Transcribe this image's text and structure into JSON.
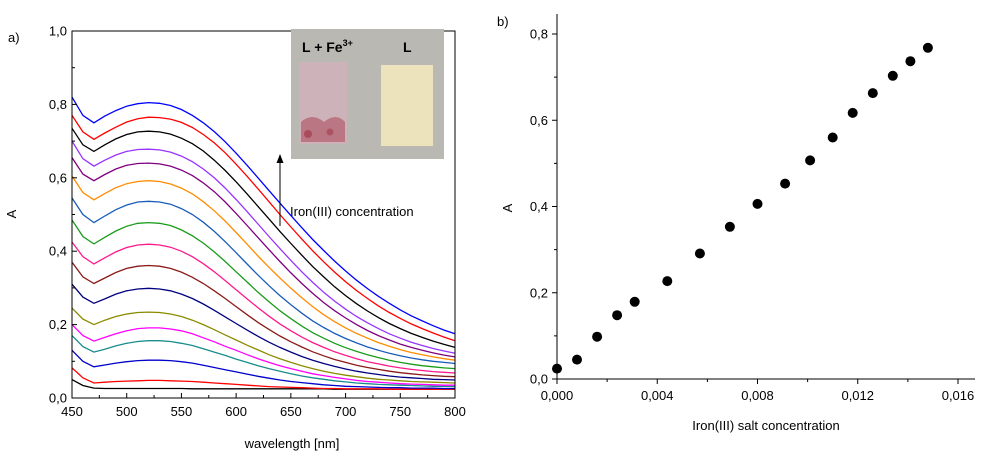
{
  "panels": {
    "a": {
      "letter": "a)",
      "xlabel": "wavelength [nm]",
      "ylabel": "A",
      "xlim": [
        450,
        800
      ],
      "ylim": [
        0.0,
        1.0
      ],
      "xticks": [
        "450",
        "500",
        "550",
        "600",
        "650",
        "700",
        "750",
        "800"
      ],
      "yticks": [
        "0,0",
        "0,2",
        "0,4",
        "0,6",
        "0,8",
        "1,0"
      ],
      "arrow_label": "Iron(III) concentration",
      "inset": {
        "left_label": "L + Fe",
        "left_sup": "3+",
        "right_label": "L",
        "left_swatch_color": "#cdb2b9",
        "right_swatch_color": "#ece3bd",
        "background_color": "#b9b8b3"
      }
    },
    "b": {
      "letter": "b)",
      "xlabel": "Iron(III) salt concentration",
      "ylabel": "A",
      "xlim": [
        0.0,
        0.016
      ],
      "ylim": [
        0.0,
        0.85
      ],
      "xticks": [
        "0,000",
        "0,004",
        "0,008",
        "0,012",
        "0,016"
      ],
      "yticks": [
        "0,0",
        "0,2",
        "0,4",
        "0,6",
        "0,8"
      ]
    }
  },
  "chart_data": [
    {
      "type": "line",
      "xlabel": "wavelength [nm]",
      "ylabel": "A",
      "xlim": [
        450,
        800
      ],
      "ylim": [
        0.0,
        1.0
      ],
      "grid": false,
      "annotation": "Iron(III) concentration",
      "x": [
        450,
        460,
        470,
        480,
        490,
        500,
        510,
        520,
        530,
        540,
        550,
        560,
        570,
        580,
        590,
        600,
        610,
        620,
        630,
        640,
        650,
        660,
        670,
        680,
        690,
        700,
        710,
        720,
        730,
        740,
        750,
        760,
        770,
        780,
        790,
        800
      ],
      "series": [
        {
          "color": "#000000",
          "values": [
            0.05,
            0.034,
            0.027,
            0.026,
            0.026,
            0.026,
            0.026,
            0.026,
            0.026,
            0.026,
            0.026,
            0.025,
            0.025,
            0.025,
            0.025,
            0.025,
            0.025,
            0.025,
            0.025,
            0.025,
            0.025,
            0.025,
            0.025,
            0.025,
            0.024,
            0.024,
            0.024,
            0.024,
            0.024,
            0.024,
            0.024,
            0.024,
            0.024,
            0.024,
            0.024,
            0.024
          ]
        },
        {
          "color": "#ff0000",
          "values": [
            0.082,
            0.055,
            0.041,
            0.043,
            0.045,
            0.046,
            0.047,
            0.048,
            0.048,
            0.047,
            0.046,
            0.045,
            0.043,
            0.041,
            0.039,
            0.037,
            0.035,
            0.033,
            0.031,
            0.03,
            0.029,
            0.028,
            0.027,
            0.026,
            0.026,
            0.025,
            0.025,
            0.025,
            0.025,
            0.024,
            0.024,
            0.024,
            0.024,
            0.024,
            0.024,
            0.024
          ]
        },
        {
          "color": "#0000cc",
          "values": [
            0.13,
            0.1,
            0.085,
            0.09,
            0.095,
            0.099,
            0.102,
            0.103,
            0.103,
            0.102,
            0.099,
            0.095,
            0.089,
            0.083,
            0.077,
            0.071,
            0.065,
            0.059,
            0.054,
            0.049,
            0.045,
            0.042,
            0.039,
            0.036,
            0.034,
            0.032,
            0.031,
            0.03,
            0.029,
            0.028,
            0.028,
            0.027,
            0.027,
            0.027,
            0.026,
            0.026
          ]
        },
        {
          "color": "#1a8c8c",
          "values": [
            0.17,
            0.14,
            0.125,
            0.133,
            0.142,
            0.149,
            0.154,
            0.156,
            0.156,
            0.154,
            0.149,
            0.143,
            0.134,
            0.125,
            0.116,
            0.106,
            0.097,
            0.088,
            0.08,
            0.073,
            0.066,
            0.06,
            0.055,
            0.051,
            0.047,
            0.044,
            0.041,
            0.039,
            0.037,
            0.036,
            0.035,
            0.034,
            0.033,
            0.032,
            0.032,
            0.031
          ]
        },
        {
          "color": "#ff00ff",
          "values": [
            0.2,
            0.17,
            0.155,
            0.165,
            0.175,
            0.183,
            0.189,
            0.191,
            0.191,
            0.188,
            0.183,
            0.175,
            0.164,
            0.153,
            0.141,
            0.13,
            0.118,
            0.107,
            0.097,
            0.088,
            0.08,
            0.073,
            0.066,
            0.061,
            0.056,
            0.052,
            0.048,
            0.045,
            0.043,
            0.041,
            0.039,
            0.038,
            0.037,
            0.036,
            0.035,
            0.035
          ]
        },
        {
          "color": "#8b8b00",
          "values": [
            0.245,
            0.215,
            0.2,
            0.212,
            0.222,
            0.229,
            0.233,
            0.234,
            0.233,
            0.229,
            0.222,
            0.212,
            0.2,
            0.186,
            0.172,
            0.158,
            0.144,
            0.131,
            0.118,
            0.107,
            0.097,
            0.088,
            0.08,
            0.073,
            0.067,
            0.062,
            0.058,
            0.054,
            0.051,
            0.049,
            0.047,
            0.045,
            0.044,
            0.043,
            0.042,
            0.041
          ]
        },
        {
          "color": "#000080",
          "values": [
            0.31,
            0.275,
            0.258,
            0.27,
            0.283,
            0.292,
            0.297,
            0.299,
            0.297,
            0.292,
            0.283,
            0.271,
            0.256,
            0.239,
            0.221,
            0.203,
            0.185,
            0.168,
            0.152,
            0.138,
            0.125,
            0.113,
            0.103,
            0.094,
            0.086,
            0.079,
            0.073,
            0.068,
            0.064,
            0.06,
            0.057,
            0.055,
            0.053,
            0.051,
            0.05,
            0.049
          ]
        },
        {
          "color": "#8b1a1a",
          "values": [
            0.37,
            0.33,
            0.312,
            0.327,
            0.342,
            0.353,
            0.359,
            0.361,
            0.359,
            0.353,
            0.343,
            0.329,
            0.312,
            0.292,
            0.271,
            0.249,
            0.227,
            0.206,
            0.187,
            0.169,
            0.153,
            0.139,
            0.126,
            0.115,
            0.105,
            0.097,
            0.089,
            0.083,
            0.078,
            0.073,
            0.069,
            0.066,
            0.063,
            0.061,
            0.059,
            0.058
          ]
        },
        {
          "color": "#ff1a8c",
          "values": [
            0.425,
            0.385,
            0.365,
            0.382,
            0.398,
            0.41,
            0.417,
            0.419,
            0.417,
            0.411,
            0.4,
            0.385,
            0.366,
            0.344,
            0.32,
            0.295,
            0.27,
            0.246,
            0.223,
            0.202,
            0.183,
            0.166,
            0.151,
            0.138,
            0.126,
            0.116,
            0.107,
            0.099,
            0.093,
            0.087,
            0.082,
            0.078,
            0.075,
            0.072,
            0.07,
            0.068
          ]
        },
        {
          "color": "#1a9c1a",
          "values": [
            0.485,
            0.44,
            0.42,
            0.438,
            0.455,
            0.468,
            0.476,
            0.478,
            0.476,
            0.47,
            0.458,
            0.442,
            0.422,
            0.398,
            0.372,
            0.344,
            0.316,
            0.288,
            0.262,
            0.238,
            0.216,
            0.196,
            0.178,
            0.163,
            0.149,
            0.137,
            0.127,
            0.118,
            0.11,
            0.103,
            0.097,
            0.092,
            0.088,
            0.085,
            0.082,
            0.08
          ]
        },
        {
          "color": "#1a5cb8",
          "values": [
            0.545,
            0.5,
            0.478,
            0.496,
            0.513,
            0.526,
            0.534,
            0.536,
            0.534,
            0.528,
            0.516,
            0.5,
            0.479,
            0.454,
            0.426,
            0.396,
            0.365,
            0.335,
            0.306,
            0.279,
            0.254,
            0.231,
            0.21,
            0.192,
            0.176,
            0.162,
            0.15,
            0.139,
            0.13,
            0.122,
            0.115,
            0.109,
            0.104,
            0.1,
            0.097,
            0.094
          ]
        },
        {
          "color": "#ff8c00",
          "values": [
            0.605,
            0.56,
            0.54,
            0.557,
            0.573,
            0.584,
            0.59,
            0.592,
            0.59,
            0.583,
            0.572,
            0.556,
            0.535,
            0.51,
            0.482,
            0.451,
            0.419,
            0.387,
            0.356,
            0.327,
            0.299,
            0.273,
            0.249,
            0.227,
            0.208,
            0.191,
            0.176,
            0.163,
            0.151,
            0.141,
            0.132,
            0.124,
            0.118,
            0.112,
            0.107,
            0.103
          ]
        },
        {
          "color": "#800080",
          "values": [
            0.655,
            0.61,
            0.592,
            0.609,
            0.624,
            0.634,
            0.639,
            0.64,
            0.638,
            0.632,
            0.621,
            0.606,
            0.586,
            0.562,
            0.534,
            0.503,
            0.47,
            0.437,
            0.404,
            0.372,
            0.341,
            0.312,
            0.285,
            0.26,
            0.238,
            0.218,
            0.2,
            0.184,
            0.17,
            0.158,
            0.147,
            0.138,
            0.13,
            0.123,
            0.117,
            0.112
          ]
        },
        {
          "color": "#9933ff",
          "values": [
            0.7,
            0.652,
            0.632,
            0.648,
            0.662,
            0.672,
            0.677,
            0.678,
            0.676,
            0.67,
            0.659,
            0.644,
            0.624,
            0.6,
            0.572,
            0.541,
            0.508,
            0.474,
            0.44,
            0.407,
            0.375,
            0.344,
            0.315,
            0.288,
            0.264,
            0.242,
            0.222,
            0.205,
            0.189,
            0.175,
            0.163,
            0.152,
            0.143,
            0.135,
            0.128,
            0.122
          ]
        },
        {
          "color": "#000000",
          "values": [
            0.735,
            0.69,
            0.672,
            0.69,
            0.706,
            0.718,
            0.725,
            0.727,
            0.725,
            0.719,
            0.708,
            0.693,
            0.673,
            0.648,
            0.62,
            0.589,
            0.556,
            0.522,
            0.488,
            0.454,
            0.421,
            0.389,
            0.358,
            0.33,
            0.303,
            0.279,
            0.257,
            0.237,
            0.219,
            0.203,
            0.189,
            0.176,
            0.165,
            0.155,
            0.146,
            0.138
          ]
        },
        {
          "color": "#ff0000",
          "values": [
            0.77,
            0.725,
            0.705,
            0.722,
            0.738,
            0.752,
            0.761,
            0.765,
            0.764,
            0.76,
            0.751,
            0.737,
            0.718,
            0.695,
            0.668,
            0.637,
            0.604,
            0.57,
            0.535,
            0.5,
            0.466,
            0.433,
            0.401,
            0.371,
            0.343,
            0.317,
            0.293,
            0.271,
            0.251,
            0.233,
            0.217,
            0.202,
            0.189,
            0.177,
            0.166,
            0.156
          ]
        },
        {
          "color": "#0000ff",
          "values": [
            0.82,
            0.77,
            0.75,
            0.768,
            0.783,
            0.795,
            0.802,
            0.805,
            0.803,
            0.797,
            0.786,
            0.77,
            0.75,
            0.726,
            0.698,
            0.667,
            0.634,
            0.6,
            0.565,
            0.531,
            0.497,
            0.464,
            0.432,
            0.402,
            0.373,
            0.346,
            0.321,
            0.298,
            0.277,
            0.258,
            0.24,
            0.224,
            0.21,
            0.197,
            0.185,
            0.175
          ]
        }
      ]
    },
    {
      "type": "scatter",
      "xlabel": "Iron(III) salt concentration",
      "ylabel": "A",
      "xlim": [
        0.0,
        0.016
      ],
      "ylim": [
        0.0,
        0.85
      ],
      "grid": false,
      "x": [
        0.0,
        0.0008,
        0.0016,
        0.0024,
        0.0031,
        0.0044,
        0.0057,
        0.0069,
        0.008,
        0.0091,
        0.0101,
        0.011,
        0.0118,
        0.0126,
        0.0134,
        0.0141,
        0.0148
      ],
      "y": [
        0.024,
        0.045,
        0.098,
        0.148,
        0.179,
        0.227,
        0.291,
        0.353,
        0.406,
        0.453,
        0.507,
        0.56,
        0.617,
        0.663,
        0.703,
        0.737,
        0.768
      ]
    }
  ]
}
